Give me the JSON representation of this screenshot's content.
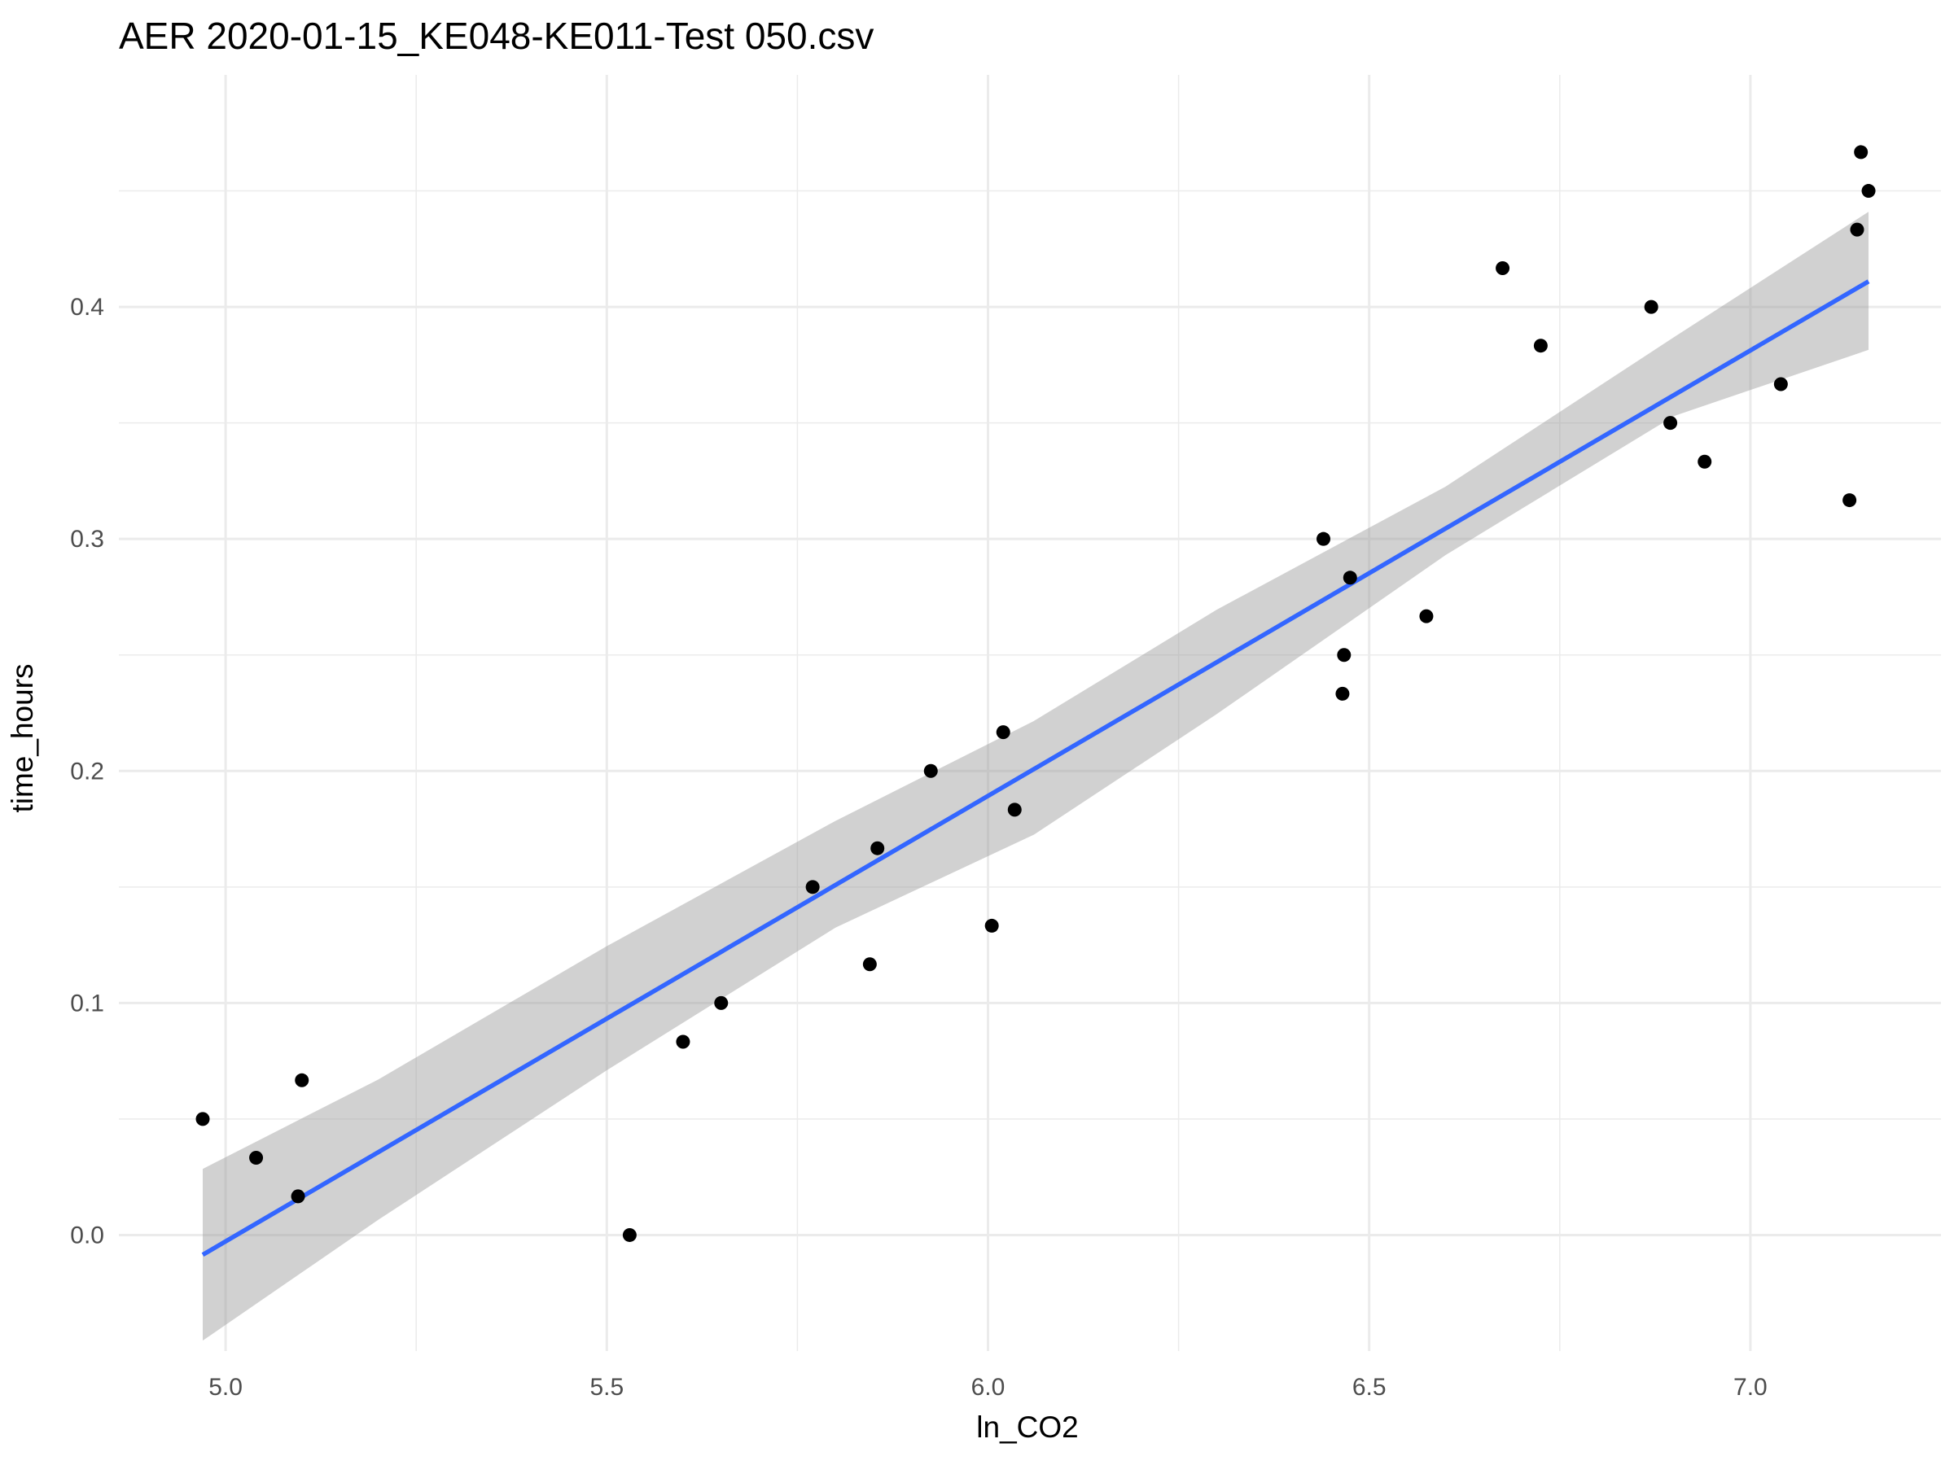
{
  "chart_data": {
    "type": "scatter",
    "title": "AER 2020-01-15_KE048-KE011-Test 050.csv",
    "xlabel": "ln_CO2",
    "ylabel": "time_hours",
    "xlim": [
      4.86,
      7.25
    ],
    "ylim": [
      -0.05,
      0.5
    ],
    "x_ticks": [
      5.0,
      5.5,
      6.0,
      6.5,
      7.0
    ],
    "x_tick_labels": [
      "5.0",
      "5.5",
      "6.0",
      "6.5",
      "7.0"
    ],
    "y_ticks": [
      0.0,
      0.1,
      0.2,
      0.3,
      0.4
    ],
    "y_tick_labels": [
      "0.0",
      "0.1",
      "0.2",
      "0.3",
      "0.4"
    ],
    "grid": true,
    "points": [
      {
        "x": 4.97,
        "y": 0.05
      },
      {
        "x": 5.04,
        "y": 0.0333
      },
      {
        "x": 5.095,
        "y": 0.0167
      },
      {
        "x": 5.1,
        "y": 0.0667
      },
      {
        "x": 5.53,
        "y": 0.0
      },
      {
        "x": 5.6,
        "y": 0.0833
      },
      {
        "x": 5.65,
        "y": 0.1
      },
      {
        "x": 5.77,
        "y": 0.15
      },
      {
        "x": 5.845,
        "y": 0.1167
      },
      {
        "x": 5.855,
        "y": 0.1667
      },
      {
        "x": 5.925,
        "y": 0.2
      },
      {
        "x": 6.005,
        "y": 0.1333
      },
      {
        "x": 6.02,
        "y": 0.2167
      },
      {
        "x": 6.035,
        "y": 0.1833
      },
      {
        "x": 6.44,
        "y": 0.3
      },
      {
        "x": 6.465,
        "y": 0.2333
      },
      {
        "x": 6.467,
        "y": 0.25
      },
      {
        "x": 6.475,
        "y": 0.2833
      },
      {
        "x": 6.575,
        "y": 0.2667
      },
      {
        "x": 6.675,
        "y": 0.4167
      },
      {
        "x": 6.725,
        "y": 0.3833
      },
      {
        "x": 6.87,
        "y": 0.4
      },
      {
        "x": 6.895,
        "y": 0.35
      },
      {
        "x": 6.94,
        "y": 0.3333
      },
      {
        "x": 7.04,
        "y": 0.3667
      },
      {
        "x": 7.13,
        "y": 0.3167
      },
      {
        "x": 7.14,
        "y": 0.4333
      },
      {
        "x": 7.145,
        "y": 0.4667
      },
      {
        "x": 7.155,
        "y": 0.45
      }
    ],
    "fit_line": {
      "method": "lm",
      "color": "#3366ff",
      "x": [
        4.97,
        7.155
      ],
      "y": [
        -0.0085,
        0.411
      ]
    },
    "confidence_band": {
      "color": "#999999",
      "x": [
        4.97,
        5.2,
        5.5,
        5.8,
        6.06,
        6.3,
        6.6,
        6.9,
        7.155
      ],
      "lower": [
        -0.0455,
        0.0065,
        0.071,
        0.1325,
        0.1725,
        0.2245,
        0.293,
        0.353,
        0.3815
      ],
      "upper": [
        0.0285,
        0.067,
        0.1245,
        0.1785,
        0.2215,
        0.2695,
        0.3225,
        0.387,
        0.441
      ]
    },
    "point_color": "#000000"
  }
}
